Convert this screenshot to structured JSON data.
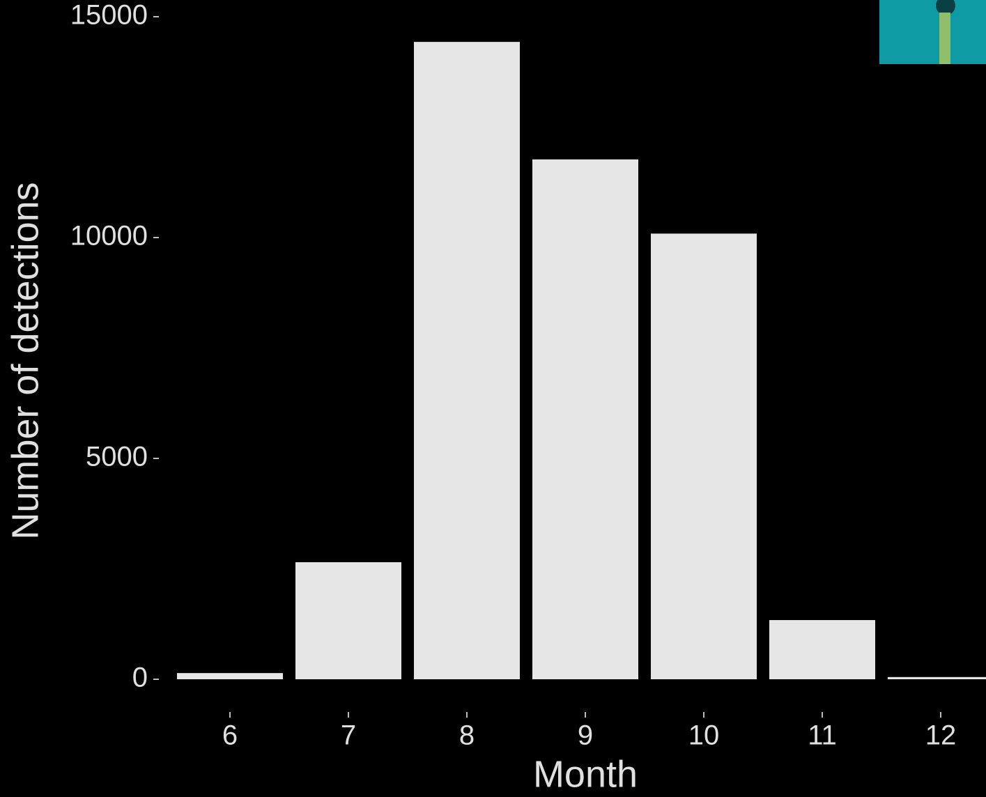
{
  "chart_data": {
    "type": "bar",
    "x_label": "Month",
    "y_label": "Number of detections",
    "categories": [
      "6",
      "7",
      "8",
      "9",
      "10",
      "11",
      "12"
    ],
    "values": [
      140,
      2650,
      14430,
      11770,
      10090,
      1340,
      50
    ],
    "color": "#e6e6e6",
    "ylim": [
      0,
      15000
    ],
    "yticks": [
      0,
      5000,
      10000,
      15000
    ],
    "grid": false
  }
}
